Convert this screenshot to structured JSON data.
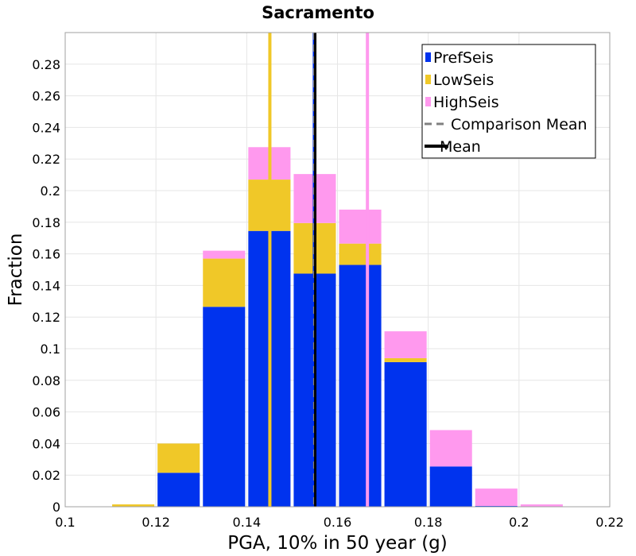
{
  "chart_data": {
    "type": "bar",
    "title": "Sacramento",
    "xlabel": "PGA, 10% in 50 year (g)",
    "ylabel": "Fraction",
    "xlim": [
      0.1,
      0.22
    ],
    "ylim": [
      0,
      0.3
    ],
    "x_ticks": [
      "0.1",
      "0.12",
      "0.14",
      "0.16",
      "0.18",
      "0.2",
      "0.22"
    ],
    "y_ticks": [
      "0",
      "0.02",
      "0.04",
      "0.06",
      "0.08",
      "0.1",
      "0.12",
      "0.14",
      "0.16",
      "0.18",
      "0.2",
      "0.22",
      "0.24",
      "0.26",
      "0.28"
    ],
    "grid": true,
    "stacked": true,
    "legend_position": "top-right",
    "bin_width": 0.01,
    "bin_centers": [
      0.115,
      0.125,
      0.135,
      0.145,
      0.155,
      0.165,
      0.175,
      0.185,
      0.195,
      0.205
    ],
    "series": [
      {
        "name": "PrefSeis",
        "color": "#0033ee",
        "values": [
          0.0,
          0.0215,
          0.1265,
          0.1745,
          0.1475,
          0.153,
          0.0915,
          0.0255,
          0.0005,
          0.0
        ]
      },
      {
        "name": "LowSeis",
        "color": "#f0c828",
        "values": [
          0.0015,
          0.0185,
          0.0305,
          0.0325,
          0.032,
          0.0135,
          0.0025,
          0.0,
          0.0,
          0.0
        ]
      },
      {
        "name": "HighSeis",
        "color": "#ff99ee",
        "values": [
          0.0,
          0.0,
          0.005,
          0.0205,
          0.031,
          0.0215,
          0.017,
          0.023,
          0.011,
          0.0015
        ]
      }
    ],
    "vertical_lines": [
      {
        "name": "LowSeis Mean",
        "x": 0.1451,
        "color": "#f0c828",
        "style": "solid"
      },
      {
        "name": "HighSeis Mean",
        "x": 0.1666,
        "color": "#ff99ee",
        "style": "solid"
      },
      {
        "name": "PrefSeis Mean",
        "x": 0.1549,
        "color": "#0033ee",
        "style": "solid"
      },
      {
        "name": "Comparison Mean",
        "x": 0.1549,
        "color": "#808080",
        "style": "dashed"
      },
      {
        "name": "Mean",
        "x": 0.1551,
        "color": "#000000",
        "style": "solid"
      }
    ],
    "legend": [
      {
        "label": "PrefSeis",
        "symbol": "box",
        "color": "#0033ee"
      },
      {
        "label": "LowSeis",
        "symbol": "box",
        "color": "#f0c828"
      },
      {
        "label": "HighSeis",
        "symbol": "box",
        "color": "#ff99ee"
      },
      {
        "label": "Comparison Mean",
        "symbol": "dashed-line",
        "color": "#808080"
      },
      {
        "label": "Mean",
        "symbol": "line",
        "color": "#000000"
      }
    ]
  }
}
